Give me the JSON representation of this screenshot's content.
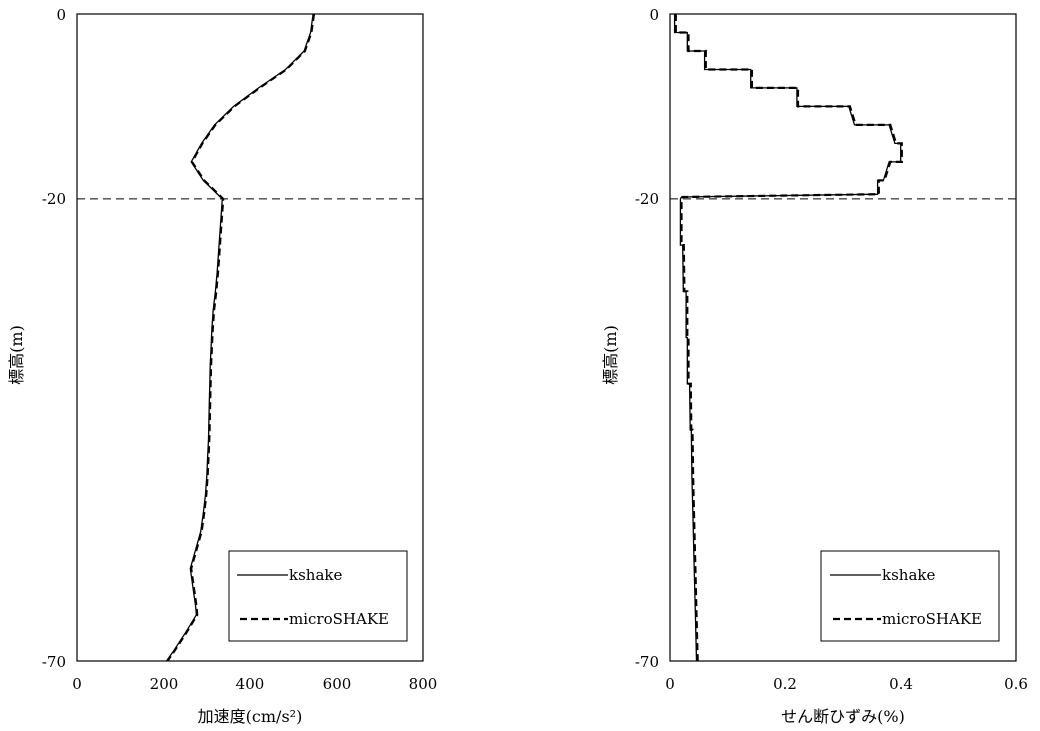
{
  "chart_data": [
    {
      "type": "line",
      "xlabel": "加速度(cm/s²)",
      "ylabel": "標高(m)",
      "xlim": [
        0,
        800
      ],
      "ylim": [
        -70,
        0
      ],
      "xticks": [
        0,
        200,
        400,
        600,
        800
      ],
      "xtick_labels": [
        "0",
        "200",
        "400",
        "600",
        "800"
      ],
      "yticks": [
        0,
        -20,
        -70
      ],
      "ytick_labels": [
        "0",
        "-20",
        "-70"
      ],
      "reference_line": {
        "y": -20,
        "style": "dashed"
      },
      "legend_position": "bottom-right",
      "series": [
        {
          "name": "kshake",
          "style": "solid",
          "points": [
            [
              546,
              0
            ],
            [
              540,
              -2
            ],
            [
              525,
              -4
            ],
            [
              482,
              -6
            ],
            [
              420,
              -8
            ],
            [
              362,
              -10
            ],
            [
              318,
              -12
            ],
            [
              288,
              -14
            ],
            [
              264,
              -16
            ],
            [
              292,
              -18
            ],
            [
              336,
              -20
            ],
            [
              333,
              -22
            ],
            [
              330,
              -24
            ],
            [
              327,
              -26
            ],
            [
              324,
              -28
            ],
            [
              320,
              -30
            ],
            [
              315,
              -32
            ],
            [
              312,
              -34
            ],
            [
              310,
              -36
            ],
            [
              308,
              -38
            ],
            [
              307,
              -40
            ],
            [
              306,
              -42
            ],
            [
              305,
              -44
            ],
            [
              304,
              -46
            ],
            [
              302,
              -48
            ],
            [
              300,
              -50
            ],
            [
              297,
              -52
            ],
            [
              292,
              -54
            ],
            [
              286,
              -56
            ],
            [
              274,
              -58
            ],
            [
              262,
              -60
            ],
            [
              268,
              -62
            ],
            [
              274,
              -64
            ],
            [
              276,
              -65
            ],
            [
              250,
              -67
            ],
            [
              222,
              -69
            ],
            [
              207,
              -70
            ]
          ]
        },
        {
          "name": "microSHAKE",
          "style": "dashed",
          "points": [
            [
              548,
              0
            ],
            [
              542,
              -2
            ],
            [
              527,
              -4
            ],
            [
              484,
              -6
            ],
            [
              422,
              -8
            ],
            [
              364,
              -10
            ],
            [
              320,
              -12
            ],
            [
              290,
              -14
            ],
            [
              266,
              -16
            ],
            [
              294,
              -18
            ],
            [
              338,
              -20
            ],
            [
              335,
              -22
            ],
            [
              332,
              -24
            ],
            [
              329,
              -26
            ],
            [
              326,
              -28
            ],
            [
              322,
              -30
            ],
            [
              317,
              -32
            ],
            [
              314,
              -34
            ],
            [
              312,
              -36
            ],
            [
              310,
              -38
            ],
            [
              309,
              -40
            ],
            [
              308,
              -42
            ],
            [
              307,
              -44
            ],
            [
              306,
              -46
            ],
            [
              304,
              -48
            ],
            [
              302,
              -50
            ],
            [
              299,
              -52
            ],
            [
              294,
              -54
            ],
            [
              288,
              -56
            ],
            [
              276,
              -58
            ],
            [
              264,
              -60
            ],
            [
              270,
              -62
            ],
            [
              276,
              -64
            ],
            [
              278,
              -65
            ],
            [
              252,
              -67
            ],
            [
              224,
              -69
            ],
            [
              209,
              -70
            ]
          ]
        }
      ]
    },
    {
      "type": "line",
      "xlabel": "せん断ひずみ(%)",
      "ylabel": "標高(m)",
      "xlim": [
        0,
        0.6
      ],
      "ylim": [
        -70,
        0
      ],
      "xticks": [
        0,
        0.2,
        0.4,
        0.6
      ],
      "xtick_labels": [
        "0",
        "0.2",
        "0.4",
        "0.6"
      ],
      "yticks": [
        0,
        -20,
        -70
      ],
      "ytick_labels": [
        "0",
        "-20",
        "-70"
      ],
      "reference_line": {
        "y": -20,
        "style": "dashed"
      },
      "legend_position": "bottom-right",
      "series": [
        {
          "name": "kshake",
          "style": "solid",
          "points": [
            [
              0.008,
              0
            ],
            [
              0.008,
              -2
            ],
            [
              0.03,
              -2
            ],
            [
              0.03,
              -4
            ],
            [
              0.06,
              -4
            ],
            [
              0.06,
              -6
            ],
            [
              0.14,
              -6
            ],
            [
              0.14,
              -8
            ],
            [
              0.22,
              -8
            ],
            [
              0.22,
              -10
            ],
            [
              0.31,
              -10
            ],
            [
              0.32,
              -12
            ],
            [
              0.38,
              -12
            ],
            [
              0.39,
              -14
            ],
            [
              0.4,
              -14
            ],
            [
              0.4,
              -16
            ],
            [
              0.38,
              -16
            ],
            [
              0.37,
              -18
            ],
            [
              0.36,
              -18
            ],
            [
              0.36,
              -19.5
            ],
            [
              0.02,
              -19.8
            ],
            [
              0.018,
              -20
            ],
            [
              0.018,
              -25
            ],
            [
              0.022,
              -25
            ],
            [
              0.023,
              -30
            ],
            [
              0.028,
              -30
            ],
            [
              0.028,
              -35
            ],
            [
              0.03,
              -35
            ],
            [
              0.03,
              -40
            ],
            [
              0.034,
              -40
            ],
            [
              0.035,
              -45
            ],
            [
              0.037,
              -45
            ],
            [
              0.038,
              -50
            ],
            [
              0.04,
              -55
            ],
            [
              0.042,
              -60
            ],
            [
              0.044,
              -65
            ],
            [
              0.046,
              -70
            ]
          ]
        },
        {
          "name": "microSHAKE",
          "style": "dashed",
          "points": [
            [
              0.01,
              0
            ],
            [
              0.01,
              -2
            ],
            [
              0.032,
              -2
            ],
            [
              0.032,
              -4
            ],
            [
              0.062,
              -4
            ],
            [
              0.062,
              -6
            ],
            [
              0.142,
              -6
            ],
            [
              0.142,
              -8
            ],
            [
              0.222,
              -8
            ],
            [
              0.222,
              -10
            ],
            [
              0.312,
              -10
            ],
            [
              0.322,
              -12
            ],
            [
              0.382,
              -12
            ],
            [
              0.392,
              -14
            ],
            [
              0.402,
              -14
            ],
            [
              0.402,
              -16
            ],
            [
              0.382,
              -16
            ],
            [
              0.372,
              -18
            ],
            [
              0.362,
              -18
            ],
            [
              0.362,
              -19.5
            ],
            [
              0.022,
              -19.8
            ],
            [
              0.02,
              -20
            ],
            [
              0.02,
              -25
            ],
            [
              0.024,
              -25
            ],
            [
              0.025,
              -30
            ],
            [
              0.03,
              -30
            ],
            [
              0.03,
              -35
            ],
            [
              0.032,
              -35
            ],
            [
              0.032,
              -40
            ],
            [
              0.036,
              -40
            ],
            [
              0.037,
              -45
            ],
            [
              0.039,
              -45
            ],
            [
              0.04,
              -50
            ],
            [
              0.042,
              -55
            ],
            [
              0.044,
              -60
            ],
            [
              0.046,
              -65
            ],
            [
              0.048,
              -70
            ]
          ]
        }
      ]
    }
  ]
}
